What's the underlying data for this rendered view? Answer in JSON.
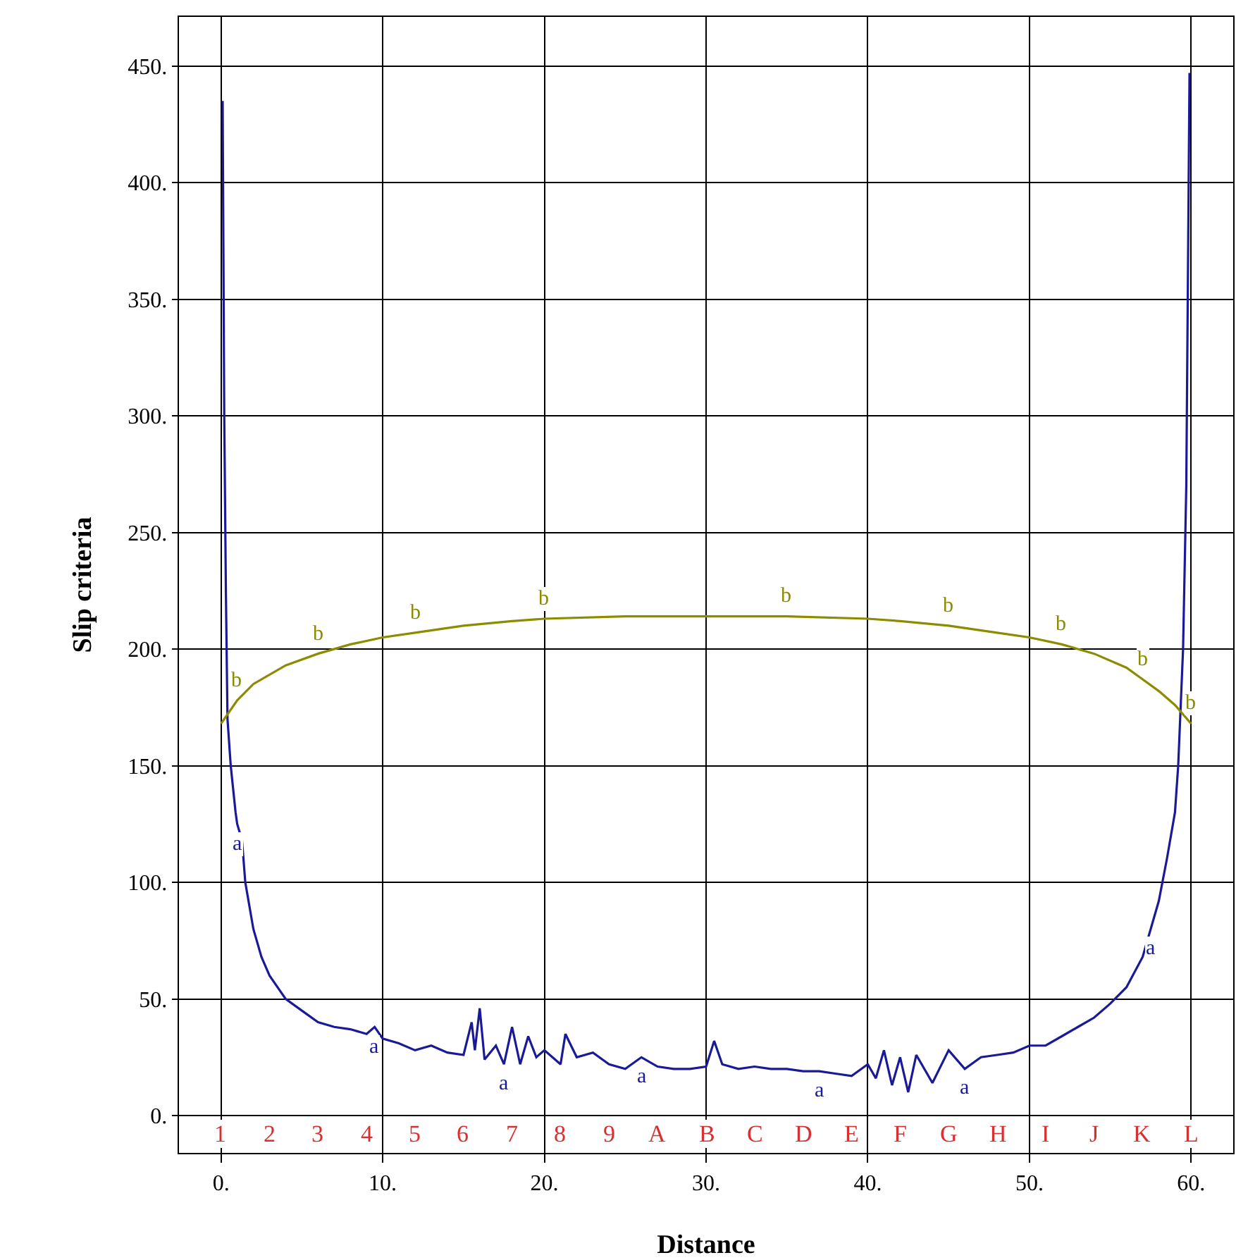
{
  "chart_data": {
    "type": "line",
    "xlabel": "Distance",
    "ylabel": "Slip criteria",
    "xlim": [
      -2.6,
      62.6
    ],
    "ylim": [
      -16,
      471
    ],
    "xticks": [
      {
        "value": 0,
        "label": "0."
      },
      {
        "value": 10,
        "label": "10."
      },
      {
        "value": 20,
        "label": "20."
      },
      {
        "value": 30,
        "label": "30."
      },
      {
        "value": 40,
        "label": "40."
      },
      {
        "value": 50,
        "label": "50."
      },
      {
        "value": 60,
        "label": "60."
      }
    ],
    "yticks": [
      {
        "value": 0,
        "label": "0."
      },
      {
        "value": 50,
        "label": "50."
      },
      {
        "value": 100,
        "label": "100."
      },
      {
        "value": 150,
        "label": "150."
      },
      {
        "value": 200,
        "label": "200."
      },
      {
        "value": 250,
        "label": "250."
      },
      {
        "value": 300,
        "label": "300."
      },
      {
        "value": 350,
        "label": "350."
      },
      {
        "value": 400,
        "label": "400."
      },
      {
        "value": 450,
        "label": "450."
      }
    ],
    "grid": true,
    "legend": false,
    "marker": "none",
    "line_style": "solid",
    "series": [
      {
        "name": "a",
        "color": "#1a1a99",
        "x": [
          0.1,
          0.2,
          0.3,
          0.4,
          0.6,
          0.9,
          1.0,
          1.3,
          1.5,
          2,
          2.5,
          3,
          4,
          5,
          6,
          7,
          8,
          9,
          9.5,
          10,
          11,
          12,
          13,
          14,
          15,
          15.5,
          15.7,
          16,
          16.3,
          17,
          17.5,
          18,
          18.5,
          19,
          19.5,
          20,
          21,
          21.3,
          22,
          23,
          24,
          25,
          26,
          27,
          28,
          29,
          30,
          30.5,
          31,
          32,
          33,
          34,
          35,
          36,
          37,
          38,
          39,
          40,
          40.5,
          41,
          41.5,
          42,
          42.5,
          43,
          44,
          45,
          46,
          47,
          48,
          49,
          50,
          51,
          52,
          53,
          54,
          55,
          56,
          57,
          57.5,
          58,
          58.5,
          59,
          59.2,
          59.5,
          59.7,
          59.9
        ],
        "values": [
          435,
          300,
          225,
          170,
          150,
          130,
          125,
          118,
          100,
          80,
          68,
          60,
          50,
          45,
          40,
          38,
          37,
          35,
          38,
          33,
          31,
          28,
          30,
          27,
          26,
          40,
          28,
          46,
          24,
          30,
          22,
          38,
          22,
          34,
          25,
          28,
          22,
          35,
          25,
          27,
          22,
          20,
          25,
          21,
          20,
          20,
          21,
          32,
          22,
          20,
          21,
          20,
          20,
          19,
          19,
          18,
          17,
          22,
          16,
          28,
          13,
          25,
          10,
          26,
          14,
          28,
          20,
          25,
          26,
          27,
          30,
          30,
          34,
          38,
          42,
          48,
          55,
          68,
          80,
          92,
          110,
          130,
          150,
          200,
          270,
          447
        ]
      },
      {
        "name": "b",
        "color": "#8c8c00",
        "x": [
          0,
          1,
          2,
          4,
          6,
          8,
          10,
          12,
          15,
          18,
          20,
          25,
          30,
          35,
          40,
          42,
          45,
          48,
          50,
          52,
          54,
          56,
          57,
          58,
          59,
          60
        ],
        "values": [
          168,
          178,
          185,
          193,
          198,
          202,
          205,
          207,
          210,
          212,
          213,
          214,
          214,
          214,
          213,
          212,
          210,
          207,
          205,
          202,
          198,
          192,
          187,
          182,
          176,
          168
        ]
      }
    ],
    "annotations": [
      "1",
      "2",
      "3",
      "4",
      "5",
      "6",
      "7",
      "8",
      "9",
      "A",
      "B",
      "C",
      "D",
      "E",
      "F",
      "G",
      "H",
      "I",
      "J",
      "K",
      "L"
    ]
  }
}
